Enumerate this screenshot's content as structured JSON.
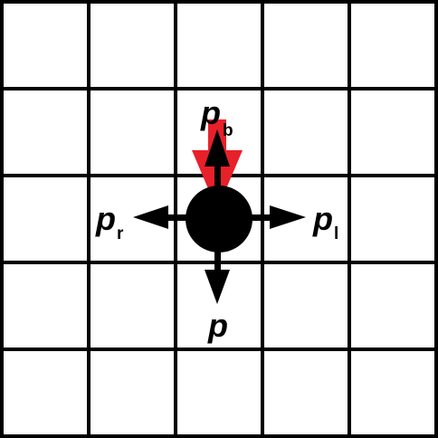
{
  "colors": {
    "background": "#ffffff",
    "grid": "#000000",
    "particle": "#000000",
    "arrow": "#000000",
    "highlight_arrow": "#e8202a"
  },
  "labels": {
    "p_b": {
      "main": "p",
      "sub": "b"
    },
    "p_r": {
      "main": "p",
      "sub": "r"
    },
    "p_l": {
      "main": "p",
      "sub": "l"
    },
    "p": {
      "main": "p"
    }
  }
}
